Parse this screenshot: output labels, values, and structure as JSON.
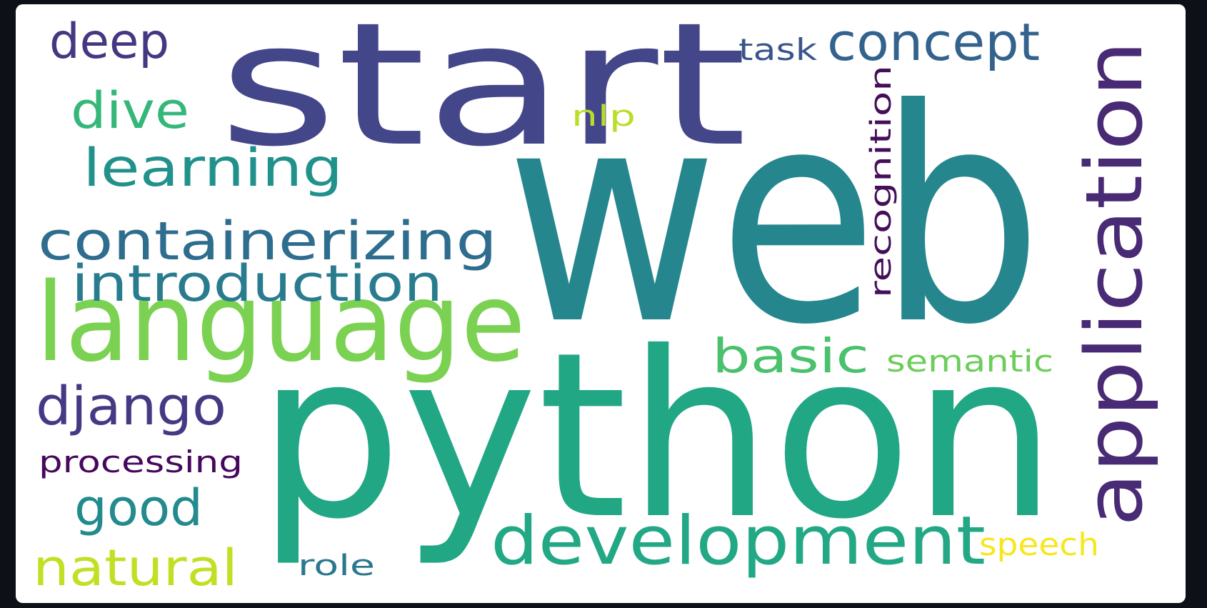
{
  "words": [
    {
      "id": "web",
      "text": "web",
      "color": "#26868e"
    },
    {
      "id": "start",
      "text": "start",
      "color": "#44468a"
    },
    {
      "id": "python",
      "text": "python",
      "color": "#22a785"
    },
    {
      "id": "language",
      "text": "language",
      "color": "#7bd151"
    },
    {
      "id": "development",
      "text": "development",
      "color": "#22a884"
    },
    {
      "id": "application",
      "text": "application",
      "color": "#482a75"
    },
    {
      "id": "containerizing",
      "text": "containerizing",
      "color": "#2e6d8e"
    },
    {
      "id": "introduction",
      "text": "introduction",
      "color": "#297b8e"
    },
    {
      "id": "learning",
      "text": "learning",
      "color": "#21918c"
    },
    {
      "id": "concept",
      "text": "concept",
      "color": "#33638d"
    },
    {
      "id": "deep",
      "text": "deep",
      "color": "#453781"
    },
    {
      "id": "dive",
      "text": "dive",
      "color": "#35b779"
    },
    {
      "id": "django",
      "text": "django",
      "color": "#443a83"
    },
    {
      "id": "basic",
      "text": "basic",
      "color": "#4ac16d"
    },
    {
      "id": "good",
      "text": "good",
      "color": "#238a8d"
    },
    {
      "id": "natural",
      "text": "natural",
      "color": "#c2df23"
    },
    {
      "id": "processing",
      "text": "processing",
      "color": "#46085c"
    },
    {
      "id": "recognition",
      "text": "recognition",
      "color": "#440f59"
    },
    {
      "id": "semantic",
      "text": "semantic",
      "color": "#6ccd5a"
    },
    {
      "id": "speech",
      "text": "speech",
      "color": "#f7e620"
    },
    {
      "id": "task",
      "text": "task",
      "color": "#39558c"
    },
    {
      "id": "nlp",
      "text": "nlp",
      "color": "#b8de29"
    },
    {
      "id": "role",
      "text": "role",
      "color": "#2a788e"
    }
  ]
}
